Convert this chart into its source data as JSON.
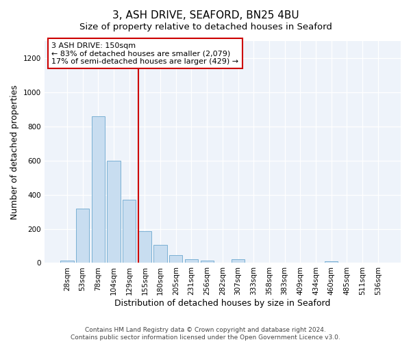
{
  "title": "3, ASH DRIVE, SEAFORD, BN25 4BU",
  "subtitle": "Size of property relative to detached houses in Seaford",
  "xlabel": "Distribution of detached houses by size in Seaford",
  "ylabel": "Number of detached properties",
  "categories": [
    "28sqm",
    "53sqm",
    "78sqm",
    "104sqm",
    "129sqm",
    "155sqm",
    "180sqm",
    "205sqm",
    "231sqm",
    "256sqm",
    "282sqm",
    "307sqm",
    "333sqm",
    "358sqm",
    "383sqm",
    "409sqm",
    "434sqm",
    "460sqm",
    "485sqm",
    "511sqm",
    "536sqm"
  ],
  "values": [
    12,
    320,
    860,
    600,
    370,
    185,
    105,
    47,
    22,
    15,
    0,
    20,
    0,
    0,
    0,
    0,
    0,
    8,
    0,
    0,
    0
  ],
  "bar_color": "#c8ddf0",
  "bar_edge_color": "#7ab0d4",
  "property_line_idx": 5,
  "property_line_color": "#cc0000",
  "annotation_text": "3 ASH DRIVE: 150sqm\n← 83% of detached houses are smaller (2,079)\n17% of semi-detached houses are larger (429) →",
  "annotation_box_facecolor": "#ffffff",
  "annotation_box_edgecolor": "#cc0000",
  "footnote1": "Contains HM Land Registry data © Crown copyright and database right 2024.",
  "footnote2": "Contains public sector information licensed under the Open Government Licence v3.0.",
  "ylim": [
    0,
    1300
  ],
  "yticks": [
    0,
    200,
    400,
    600,
    800,
    1000,
    1200
  ],
  "fig_facecolor": "#ffffff",
  "plot_facecolor": "#eef3fa",
  "grid_color": "#ffffff",
  "title_fontsize": 11,
  "subtitle_fontsize": 9.5,
  "xlabel_fontsize": 9,
  "ylabel_fontsize": 9,
  "tick_fontsize": 7.5,
  "annot_fontsize": 8
}
